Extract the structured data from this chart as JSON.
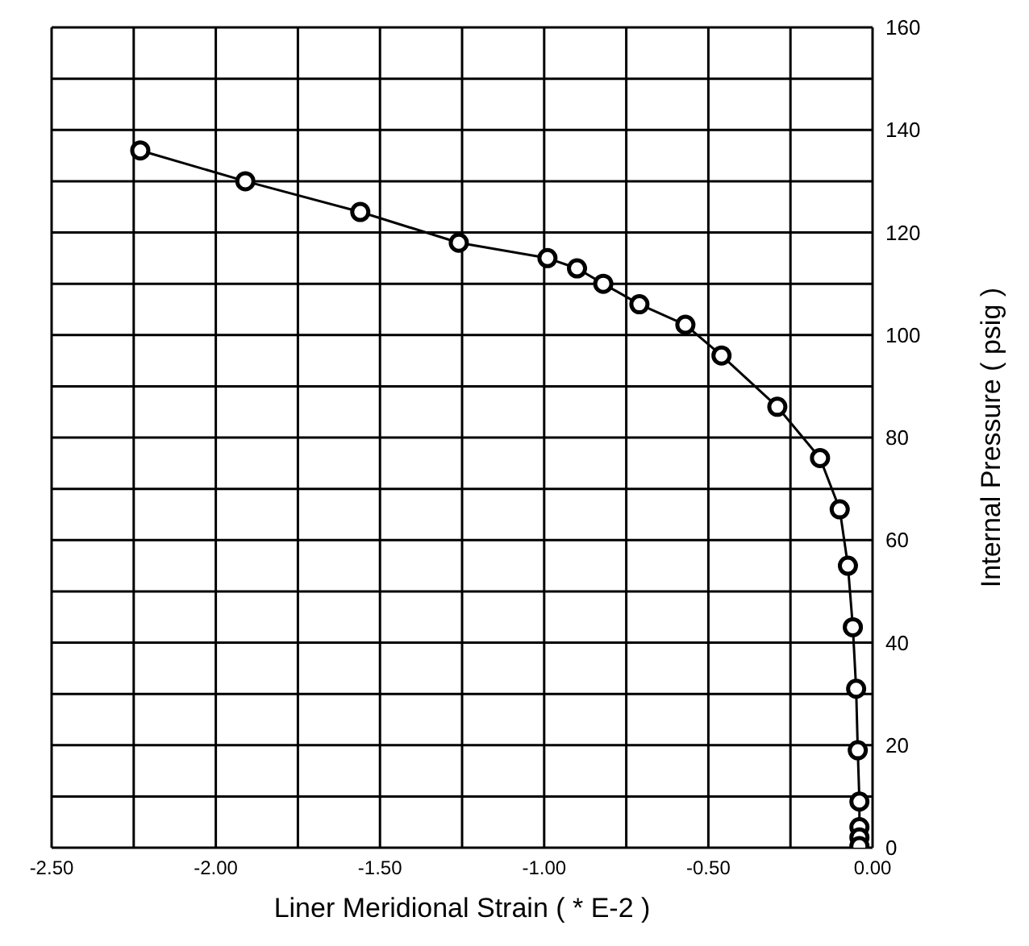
{
  "chart_data": {
    "type": "line",
    "xlabel": "Liner Meridional Strain ( * E-2 )",
    "ylabel": "Internal Pressure ( psig )",
    "x": [
      -2.23,
      -1.91,
      -1.56,
      -1.26,
      -0.99,
      -0.9,
      -0.82,
      -0.71,
      -0.57,
      -0.46,
      -0.29,
      -0.16,
      -0.1,
      -0.075,
      -0.06,
      -0.05,
      -0.045,
      -0.04,
      -0.04,
      -0.04,
      -0.04
    ],
    "series": [
      {
        "color": "#000000",
        "values": [
          136,
          130,
          124,
          118,
          115,
          113,
          110,
          106,
          102,
          96,
          86,
          76,
          66,
          55,
          43,
          31,
          19,
          9,
          4,
          2,
          0.3
        ]
      }
    ],
    "xlim": [
      -2.5,
      0
    ],
    "ylim": [
      0,
      160
    ],
    "xticks": [
      {
        "value": -2.5,
        "label": "-2.50"
      },
      {
        "value": -2.25,
        "label": null
      },
      {
        "value": -2,
        "label": "-2.00"
      },
      {
        "value": -1.75,
        "label": null
      },
      {
        "value": -1.5,
        "label": "-1.50"
      },
      {
        "value": -1.25,
        "label": null
      },
      {
        "value": -1,
        "label": "-1.00"
      },
      {
        "value": -0.75,
        "label": null
      },
      {
        "value": -0.5,
        "label": "-0.50"
      },
      {
        "value": -0.25,
        "label": null
      },
      {
        "value": 0,
        "label": "0.00"
      }
    ],
    "yticks": [
      0,
      {
        "value": 10,
        "label": null
      },
      20,
      {
        "value": 30,
        "label": null
      },
      40,
      {
        "value": 50,
        "label": null
      },
      60,
      {
        "value": 70,
        "label": null
      },
      80,
      {
        "value": 90,
        "label": null
      },
      100,
      {
        "value": 110,
        "label": null
      },
      120,
      {
        "value": 130,
        "label": null
      },
      140,
      {
        "value": 150,
        "label": null
      },
      160
    ],
    "grid": true,
    "marker": "circle",
    "line_style": "solid",
    "legend": false
  }
}
